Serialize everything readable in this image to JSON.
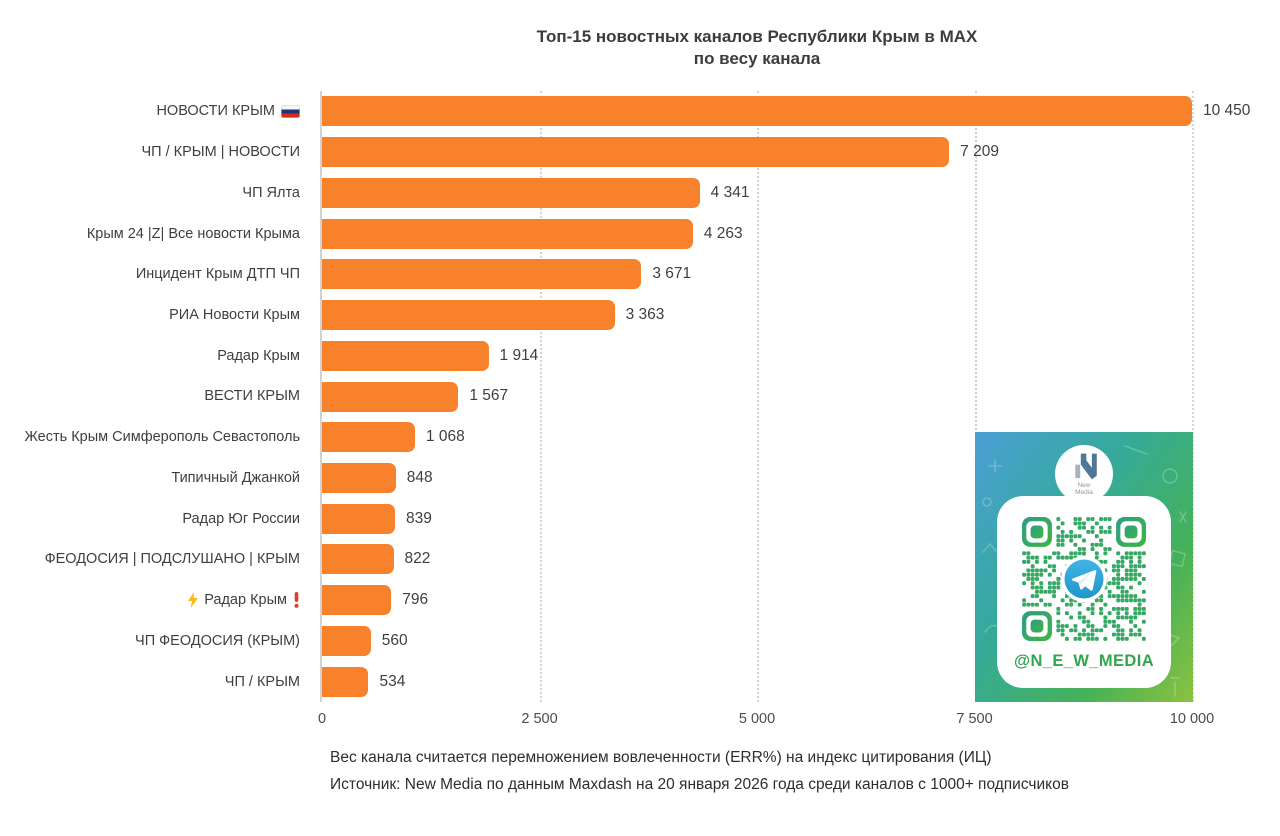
{
  "title": {
    "line1": "Топ-15 новостных каналов Республики Крым в MAX",
    "line2": "по весу канала"
  },
  "chart_data": {
    "type": "bar",
    "orientation": "horizontal",
    "title": "Топ-15 новостных каналов Республики Крым в MAX по весу канала",
    "xlabel": "",
    "ylabel": "",
    "xlim": [
      0,
      10000
    ],
    "grid": "vertical-dotted",
    "bar_color": "#F8822B",
    "categories": [
      "НОВОСТИ КРЫМ",
      "ЧП / КРЫМ | НОВОСТИ",
      "ЧП Ялта",
      "Крым 24 |Z| Все новости Крыма",
      "Инцидент Крым ДТП ЧП",
      "РИА Новости Крым",
      "Радар Крым",
      "ВЕСТИ КРЫМ",
      "Жесть Крым Симферополь Севастополь",
      "Типичный Джанкой",
      "Радар Юг России",
      "ФЕОДОСИЯ | ПОДСЛУШАНО | КРЫМ",
      "Радар Крым",
      "ЧП ФЕОДОСИЯ (КРЫМ)",
      "ЧП / КРЫМ"
    ],
    "values": [
      10450,
      7209,
      4341,
      4263,
      3671,
      3363,
      1914,
      1567,
      1068,
      848,
      839,
      822,
      796,
      560,
      534
    ],
    "value_labels": [
      "10 450",
      "7 209",
      "4 341",
      "4 263",
      "3 671",
      "3 363",
      "1 914",
      "1 567",
      "1 068",
      "848",
      "839",
      "822",
      "796",
      "560",
      "534"
    ],
    "row_icons": [
      {
        "index": 0,
        "after": "russia-flag"
      },
      {
        "index": 12,
        "before": "lightning",
        "after": "red-exclamation"
      }
    ],
    "x_ticks": [
      {
        "label": "0",
        "value": 0
      },
      {
        "label": "2 500",
        "value": 2500
      },
      {
        "label": "5 000",
        "value": 5000
      },
      {
        "label": "7 500",
        "value": 7500
      },
      {
        "label": "10 000",
        "value": 10000
      }
    ]
  },
  "footnotes": {
    "line1": "Вес канала считается перемножением вовлеченности (ERR%) на индекс цитирования (ИЦ)",
    "line2": "Источник: New Media по данным Maxdash на 20 января 2026 года среди каналов с 1000+ подписчиков"
  },
  "qr_card": {
    "handle": "@N_E_W_MEDIA",
    "logo_line1": "New",
    "logo_line2": "Media",
    "panel_gradient": [
      "#4C9FD6",
      "#35AA9A",
      "#45B158",
      "#8CC23F"
    ],
    "qr_gradient": [
      "#2E9D85",
      "#3DB542"
    ],
    "telegram_blue": "#41B4E6"
  }
}
